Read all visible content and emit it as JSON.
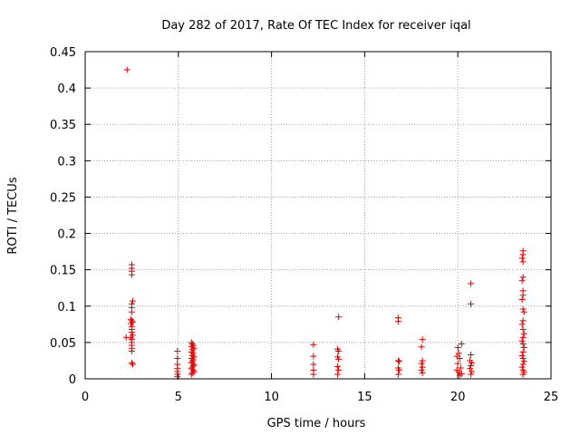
{
  "chart_data": {
    "type": "scatter",
    "title": "Day 282 of 2017, Rate Of TEC Index for receiver iqal",
    "xlabel": "GPS time / hours",
    "ylabel": "ROTI / TECUs",
    "xlim": [
      0,
      25
    ],
    "ylim": [
      0,
      0.45
    ],
    "xticks": [
      "0",
      "5",
      "10",
      "15",
      "20",
      "25"
    ],
    "yticks": [
      "0",
      "0.05",
      "0.1",
      "0.15",
      "0.2",
      "0.25",
      "0.3",
      "0.35",
      "0.4",
      "0.45"
    ],
    "grid": true,
    "marker": "plus",
    "color": "#e00000",
    "points": [
      [
        2.25,
        0.425
      ],
      [
        2.2,
        0.057
      ],
      [
        2.5,
        0.157
      ],
      [
        2.5,
        0.152
      ],
      [
        2.5,
        0.148
      ],
      [
        2.5,
        0.143
      ],
      [
        2.55,
        0.107
      ],
      [
        2.5,
        0.103
      ],
      [
        2.5,
        0.098
      ],
      [
        2.5,
        0.092
      ],
      [
        2.45,
        0.082
      ],
      [
        2.5,
        0.08
      ],
      [
        2.55,
        0.078
      ],
      [
        2.45,
        0.076
      ],
      [
        2.5,
        0.072
      ],
      [
        2.5,
        0.068
      ],
      [
        2.5,
        0.064
      ],
      [
        2.55,
        0.06
      ],
      [
        2.45,
        0.057
      ],
      [
        2.5,
        0.054
      ],
      [
        2.5,
        0.05
      ],
      [
        2.5,
        0.046
      ],
      [
        2.5,
        0.042
      ],
      [
        2.5,
        0.038
      ],
      [
        2.5,
        0.022
      ],
      [
        2.55,
        0.02
      ],
      [
        4.95,
        0.038
      ],
      [
        4.95,
        0.028
      ],
      [
        4.95,
        0.02
      ],
      [
        4.95,
        0.014
      ],
      [
        4.95,
        0.01
      ],
      [
        4.95,
        0.006
      ],
      [
        4.95,
        0.003
      ],
      [
        5.7,
        0.05
      ],
      [
        5.75,
        0.048
      ],
      [
        5.8,
        0.046
      ],
      [
        5.7,
        0.044
      ],
      [
        5.85,
        0.042
      ],
      [
        5.75,
        0.04
      ],
      [
        5.7,
        0.037
      ],
      [
        5.8,
        0.035
      ],
      [
        5.75,
        0.032
      ],
      [
        5.85,
        0.03
      ],
      [
        5.7,
        0.028
      ],
      [
        5.8,
        0.026
      ],
      [
        5.75,
        0.024
      ],
      [
        5.7,
        0.022
      ],
      [
        5.85,
        0.02
      ],
      [
        5.8,
        0.018
      ],
      [
        5.75,
        0.016
      ],
      [
        5.7,
        0.014
      ],
      [
        5.8,
        0.012
      ],
      [
        5.85,
        0.01
      ],
      [
        5.75,
        0.008
      ],
      [
        5.7,
        0.006
      ],
      [
        12.25,
        0.047
      ],
      [
        12.25,
        0.031
      ],
      [
        12.25,
        0.02
      ],
      [
        12.25,
        0.012
      ],
      [
        12.25,
        0.006
      ],
      [
        13.6,
        0.085
      ],
      [
        13.55,
        0.041
      ],
      [
        13.6,
        0.038
      ],
      [
        13.55,
        0.03
      ],
      [
        13.6,
        0.027
      ],
      [
        13.55,
        0.017
      ],
      [
        13.6,
        0.012
      ],
      [
        13.55,
        0.006
      ],
      [
        16.8,
        0.084
      ],
      [
        16.8,
        0.079
      ],
      [
        16.8,
        0.025
      ],
      [
        16.85,
        0.024
      ],
      [
        16.8,
        0.015
      ],
      [
        16.85,
        0.012
      ],
      [
        16.8,
        0.006
      ],
      [
        18.1,
        0.054
      ],
      [
        18.05,
        0.044
      ],
      [
        18.1,
        0.025
      ],
      [
        18.05,
        0.021
      ],
      [
        18.1,
        0.016
      ],
      [
        18.05,
        0.012
      ],
      [
        18.1,
        0.008
      ],
      [
        20.0,
        0.043
      ],
      [
        20.2,
        0.048
      ],
      [
        20.05,
        0.035
      ],
      [
        19.95,
        0.031
      ],
      [
        20.1,
        0.028
      ],
      [
        20.0,
        0.021
      ],
      [
        20.15,
        0.015
      ],
      [
        19.95,
        0.012
      ],
      [
        20.05,
        0.009
      ],
      [
        20.2,
        0.007
      ],
      [
        20.1,
        0.005
      ],
      [
        20.7,
        0.131
      ],
      [
        20.7,
        0.103
      ],
      [
        20.7,
        0.033
      ],
      [
        20.65,
        0.025
      ],
      [
        20.75,
        0.022
      ],
      [
        20.7,
        0.018
      ],
      [
        20.65,
        0.014
      ],
      [
        20.75,
        0.01
      ],
      [
        20.7,
        0.006
      ],
      [
        23.5,
        0.176
      ],
      [
        23.5,
        0.171
      ],
      [
        23.45,
        0.166
      ],
      [
        23.5,
        0.161
      ],
      [
        23.5,
        0.14
      ],
      [
        23.45,
        0.135
      ],
      [
        23.5,
        0.121
      ],
      [
        23.5,
        0.115
      ],
      [
        23.45,
        0.109
      ],
      [
        23.5,
        0.096
      ],
      [
        23.55,
        0.092
      ],
      [
        23.5,
        0.08
      ],
      [
        23.45,
        0.075
      ],
      [
        23.5,
        0.068
      ],
      [
        23.55,
        0.062
      ],
      [
        23.5,
        0.057
      ],
      [
        23.45,
        0.052
      ],
      [
        23.5,
        0.048
      ],
      [
        23.55,
        0.043
      ],
      [
        23.5,
        0.037
      ],
      [
        23.45,
        0.032
      ],
      [
        23.5,
        0.028
      ],
      [
        23.55,
        0.024
      ],
      [
        23.5,
        0.02
      ],
      [
        23.45,
        0.016
      ],
      [
        23.5,
        0.012
      ],
      [
        23.55,
        0.009
      ],
      [
        23.5,
        0.006
      ]
    ]
  }
}
